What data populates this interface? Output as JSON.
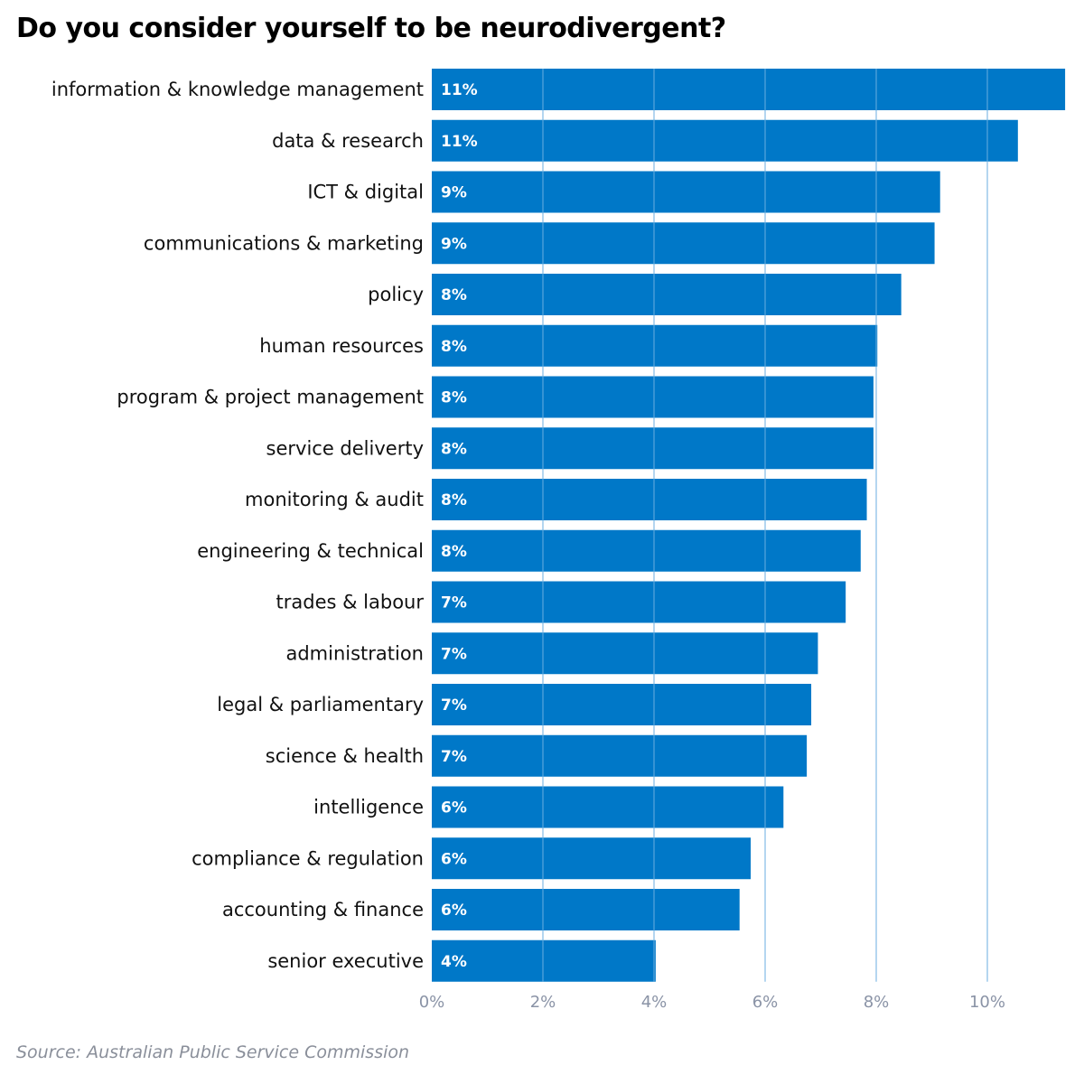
{
  "title": "Do you consider yourself to be neurodivergent?",
  "source": "Source: Australian Public Service Commission",
  "colors": {
    "bar": "#0078c8",
    "gridline": "#6aaee0",
    "tick_text": "#8a93a6"
  },
  "chart_data": {
    "type": "bar",
    "orientation": "horizontal",
    "title": "Do you consider yourself to be neurodivergent?",
    "xlabel": "",
    "ylabel": "",
    "xlim": [
      0,
      11.5
    ],
    "x_ticks": [
      "0%",
      "2%",
      "4%",
      "6%",
      "8%",
      "10%"
    ],
    "grid": true,
    "categories": [
      "information & knowledge management",
      "data & research",
      "ICT & digital",
      "communications & marketing",
      "policy",
      "human resources",
      "program & project management",
      "service deliverty",
      "monitoring & audit",
      "engineering & technical",
      "trades & labour",
      "administration",
      "legal & parliamentary",
      "science & health",
      "intelligence",
      "compliance & regulation",
      "accounting & finance",
      "senior executive"
    ],
    "values": [
      11.4,
      10.55,
      9.15,
      9.05,
      8.45,
      8.02,
      7.95,
      7.95,
      7.83,
      7.72,
      7.45,
      6.95,
      6.83,
      6.75,
      6.33,
      5.74,
      5.54,
      4.03
    ],
    "value_labels": [
      "11%",
      "11%",
      "9%",
      "9%",
      "8%",
      "8%",
      "8%",
      "8%",
      "8%",
      "8%",
      "7%",
      "7%",
      "7%",
      "7%",
      "6%",
      "6%",
      "6%",
      "4%"
    ]
  }
}
